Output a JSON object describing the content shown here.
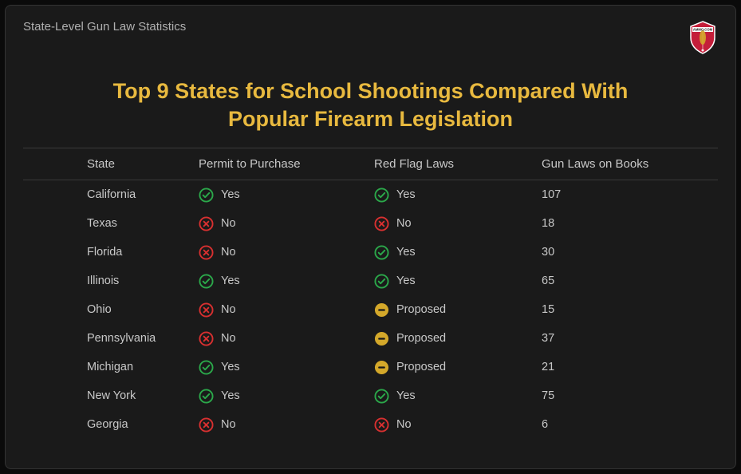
{
  "header": {
    "subtitle": "State-Level Gun Law Statistics",
    "title_line1": "Top 9 States for School Shootings Compared With",
    "title_line2": "Popular Firearm Legislation"
  },
  "table": {
    "columns": [
      "State",
      "Permit to Purchase",
      "Red Flag Laws",
      "Gun Laws on Books"
    ],
    "rows": [
      {
        "state": "California",
        "permit": {
          "status": "yes",
          "label": "Yes"
        },
        "redflag": {
          "status": "yes",
          "label": "Yes"
        },
        "laws": "107"
      },
      {
        "state": "Texas",
        "permit": {
          "status": "no",
          "label": "No"
        },
        "redflag": {
          "status": "no",
          "label": "No"
        },
        "laws": "18"
      },
      {
        "state": "Florida",
        "permit": {
          "status": "no",
          "label": "No"
        },
        "redflag": {
          "status": "yes",
          "label": "Yes"
        },
        "laws": "30"
      },
      {
        "state": "Illinois",
        "permit": {
          "status": "yes",
          "label": "Yes"
        },
        "redflag": {
          "status": "yes",
          "label": "Yes"
        },
        "laws": "65"
      },
      {
        "state": "Ohio",
        "permit": {
          "status": "no",
          "label": "No"
        },
        "redflag": {
          "status": "proposed",
          "label": "Proposed"
        },
        "laws": "15"
      },
      {
        "state": "Pennsylvania",
        "permit": {
          "status": "no",
          "label": "No"
        },
        "redflag": {
          "status": "proposed",
          "label": "Proposed"
        },
        "laws": "37"
      },
      {
        "state": "Michigan",
        "permit": {
          "status": "yes",
          "label": "Yes"
        },
        "redflag": {
          "status": "proposed",
          "label": "Proposed"
        },
        "laws": "21"
      },
      {
        "state": "New York",
        "permit": {
          "status": "yes",
          "label": "Yes"
        },
        "redflag": {
          "status": "yes",
          "label": "Yes"
        },
        "laws": "75"
      },
      {
        "state": "Georgia",
        "permit": {
          "status": "no",
          "label": "No"
        },
        "redflag": {
          "status": "no",
          "label": "No"
        },
        "laws": "6"
      }
    ]
  },
  "colors": {
    "yes": "#2ba84a",
    "no": "#d83030",
    "proposed": "#d4a82a",
    "title": "#e8b93f",
    "text": "#c8c8c8",
    "bg": "#1a1a1a",
    "border": "#3a3a3a"
  }
}
